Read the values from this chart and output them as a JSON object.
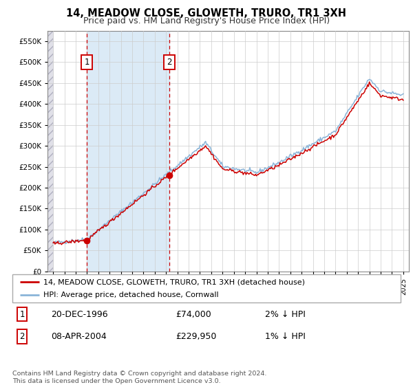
{
  "title": "14, MEADOW CLOSE, GLOWETH, TRURO, TR1 3XH",
  "subtitle": "Price paid vs. HM Land Registry's House Price Index (HPI)",
  "sale1_date": 1996.97,
  "sale1_price": 74000,
  "sale1_label": "1",
  "sale2_date": 2004.27,
  "sale2_price": 229950,
  "sale2_label": "2",
  "legend_entry1": "14, MEADOW CLOSE, GLOWETH, TRURO, TR1 3XH (detached house)",
  "legend_entry2": "HPI: Average price, detached house, Cornwall",
  "table_row1_num": "1",
  "table_row1_date": "20-DEC-1996",
  "table_row1_price": "£74,000",
  "table_row1_hpi": "2% ↓ HPI",
  "table_row2_num": "2",
  "table_row2_date": "08-APR-2004",
  "table_row2_price": "£229,950",
  "table_row2_hpi": "1% ↓ HPI",
  "footer": "Contains HM Land Registry data © Crown copyright and database right 2024.\nThis data is licensed under the Open Government Licence v3.0.",
  "hpi_color": "#8ab4d8",
  "price_color": "#cc0000",
  "vline_color": "#cc0000",
  "ylim_min": 0,
  "ylim_max": 575000,
  "xlim_min": 1993.5,
  "xlim_max": 2025.5,
  "grid_color": "#cccccc",
  "plot_bg": "#ffffff",
  "shade_between_color": "#d8e8f5",
  "hatch_color": "#d0d0d8"
}
